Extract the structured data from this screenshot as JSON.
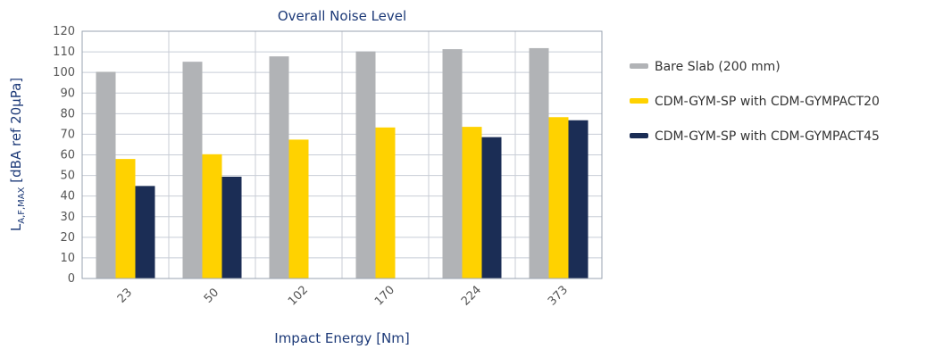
{
  "chart_data": {
    "type": "bar",
    "title": "Overall Noise Level",
    "xlabel": "Impact Energy [Nm]",
    "ylabel": {
      "main": "L",
      "subscript": "A,F,MAX",
      "suffix": " [dBA ref 20μPa]"
    },
    "categories": [
      "23",
      "50",
      "102",
      "170",
      "224",
      "373"
    ],
    "ylim": [
      0,
      120
    ],
    "ytick_step": 10,
    "grid": true,
    "legend_position": "right",
    "series": [
      {
        "name": "Bare Slab (200 mm)",
        "color": "#b1b3b6",
        "values": [
          100.3,
          105.2,
          107.8,
          110.2,
          111.3,
          111.8
        ]
      },
      {
        "name": "CDM-GYM-SP with CDM-GYMPACT20",
        "color": "#ffd200",
        "values": [
          58,
          60.3,
          67.4,
          73.3,
          73.6,
          78.3
        ]
      },
      {
        "name": "CDM-GYM-SP with CDM-GYMPACT45",
        "color": "#1b2d55",
        "values": [
          44.9,
          49.4,
          null,
          null,
          68.6,
          76.8
        ]
      }
    ]
  }
}
